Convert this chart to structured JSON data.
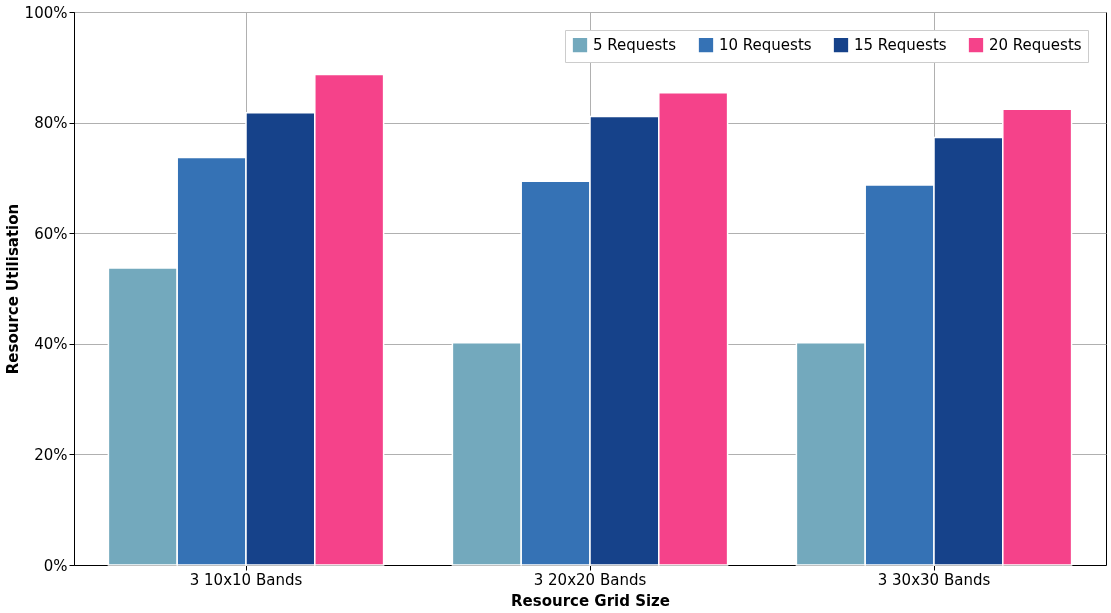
{
  "chart_data": {
    "type": "bar",
    "xlabel": "Resource Grid Size",
    "ylabel": "Resource Utilisation",
    "categories": [
      "3 10x10 Bands",
      "3 20x20 Bands",
      "3 30x30 Bands"
    ],
    "series": [
      {
        "name": "5 Requests",
        "color": "#73a9bd",
        "values": [
          53.7,
          40.2,
          40.2
        ]
      },
      {
        "name": "10 Requests",
        "color": "#3572b5",
        "values": [
          73.7,
          69.4,
          68.7
        ]
      },
      {
        "name": "15 Requests",
        "color": "#16428a",
        "values": [
          81.8,
          81.1,
          77.3
        ]
      },
      {
        "name": "20 Requests",
        "color": "#f5428a",
        "values": [
          88.7,
          85.4,
          82.4
        ]
      }
    ],
    "ylim": [
      0,
      100
    ],
    "yticks": [
      {
        "value": 0,
        "label": "0%"
      },
      {
        "value": 20,
        "label": "20%"
      },
      {
        "value": 40,
        "label": "40%"
      },
      {
        "value": 60,
        "label": "60%"
      },
      {
        "value": 80,
        "label": "80%"
      },
      {
        "value": 100,
        "label": "100%"
      }
    ],
    "grid": true,
    "legend": "top right"
  }
}
